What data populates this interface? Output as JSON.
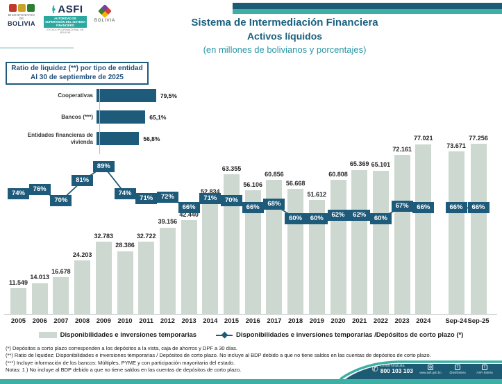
{
  "header": {
    "title": "Sistema de Intermediación Financiera",
    "subtitle": "Activos líquidos",
    "units_line": "(en millones de bolivianos y porcentajes)",
    "logos": {
      "bicentenario_top": "BICENTENARIO DE",
      "bicentenario_name": "BOLIVIA",
      "asfi_name": "ASFI",
      "asfi_sub1": "AUTORIDAD DE SUPERVISIÓN DEL SISTEMA FINANCIERO",
      "asfi_sub2": "ESTADO PLURINACIONAL DE BOLIVIA",
      "emblem_name": "BOLIVIA"
    },
    "colors": {
      "band_dark": "#1d5a73",
      "band_light": "#3cb0a5"
    }
  },
  "chart_data": [
    {
      "type": "bar",
      "orientation": "horizontal",
      "title": "Ratio de liquidez (**) por tipo de entidad",
      "subtitle": "Al 30 de septiembre de 2025",
      "categories": [
        "Cooperativas",
        "Bancos (***)",
        "Entidades financieras de vivienda"
      ],
      "values": [
        79.5,
        65.1,
        56.8
      ],
      "value_labels": [
        "79,5%",
        "65,1%",
        "56,8%"
      ],
      "unit": "%",
      "xlim": [
        0,
        100
      ],
      "bar_color": "#1e5a7a",
      "grid": false
    },
    {
      "type": "combo-bar-line",
      "title": "Activos líquidos del Sistema de Intermediación Financiera",
      "categories": [
        "2005",
        "2006",
        "2007",
        "2008",
        "2009",
        "2010",
        "2011",
        "2012",
        "2013",
        "2014",
        "2015",
        "2016",
        "2017",
        "2018",
        "2019",
        "2020",
        "2021",
        "2022",
        "2023",
        "2024",
        "Sep-24",
        "Sep-25"
      ],
      "series": [
        {
          "name": "Disponibilidades e inversiones temporarias",
          "type": "bar",
          "unit": "millones de bolivianos",
          "color": "#ccd8d0",
          "values": [
            11549,
            14013,
            16678,
            24203,
            32783,
            28386,
            32722,
            39156,
            42440,
            52834,
            63355,
            56106,
            60856,
            56668,
            51612,
            60808,
            65369,
            65101,
            72161,
            77021,
            73671,
            77256
          ],
          "value_labels": [
            "11.549",
            "14.013",
            "16.678",
            "24.203",
            "32.783",
            "28.386",
            "32.722",
            "39.156",
            "42.440",
            "52.834",
            "63.355",
            "56.106",
            "60.856",
            "56.668",
            "51.612",
            "60.808",
            "65.369",
            "65.101",
            "72.161",
            "77.021",
            "73.671",
            "77.256"
          ]
        },
        {
          "name": "Disponibilidades e inversiones temporarias /Depósitos de corto plazo (*)",
          "type": "line",
          "unit": "%",
          "color": "#1e5a7a",
          "values": [
            74,
            76,
            70,
            81,
            89,
            74,
            71,
            72,
            66,
            71,
            70,
            66,
            68,
            60,
            60,
            62,
            62,
            60,
            67,
            66,
            66,
            66
          ],
          "value_labels": [
            "74%",
            "76%",
            "70%",
            "81%",
            "89%",
            "74%",
            "71%",
            "72%",
            "66%",
            "71%",
            "70%",
            "66%",
            "68%",
            "60%",
            "60%",
            "62%",
            "62%",
            "60%",
            "67%",
            "66%",
            "66%",
            "66%"
          ],
          "segments": [
            [
              0,
              19
            ],
            [
              20,
              21
            ]
          ]
        }
      ],
      "legend_position": "bottom",
      "ylim_bars": [
        0,
        80000
      ],
      "ylim_line": [
        0,
        100
      ],
      "grid": false
    }
  ],
  "legend": {
    "bars_label": "Disponibilidades e inversiones temporarias",
    "line_label": "Disponibilidades e inversiones temporarias /Depósitos de corto plazo (*)"
  },
  "footnotes": [
    "(*) Depósitos a corto plazo corresponden a los depósitos a la vista, caja de ahorros y DPF a 30 días.",
    "(**) Ratio de liquidez: Disponibilidades e inversiones temporarias / Depósitos de corto plazo. No incluye al BDP debido a que no tiene saldos en las cuentas de depósitos de corto plazo.",
    "(***) Incluye información de los bancos: Múltiples, PYME y con participación mayoritaria del estado.",
    "Notas:  1 ) No incluye al BDP debido a que no tiene saldos en las cuentas de depósitos de corto plazo."
  ],
  "footer": {
    "phone_label": "Línea Gratuita",
    "phone_number": "800 103 103",
    "website": "www.asfi.gob.bo",
    "social_twitter": "@asfibolivia",
    "social_facebook": "ASFI Bolivia",
    "colors": {
      "band_dark": "#1d5a73",
      "band_light": "#3cb0a5"
    }
  }
}
